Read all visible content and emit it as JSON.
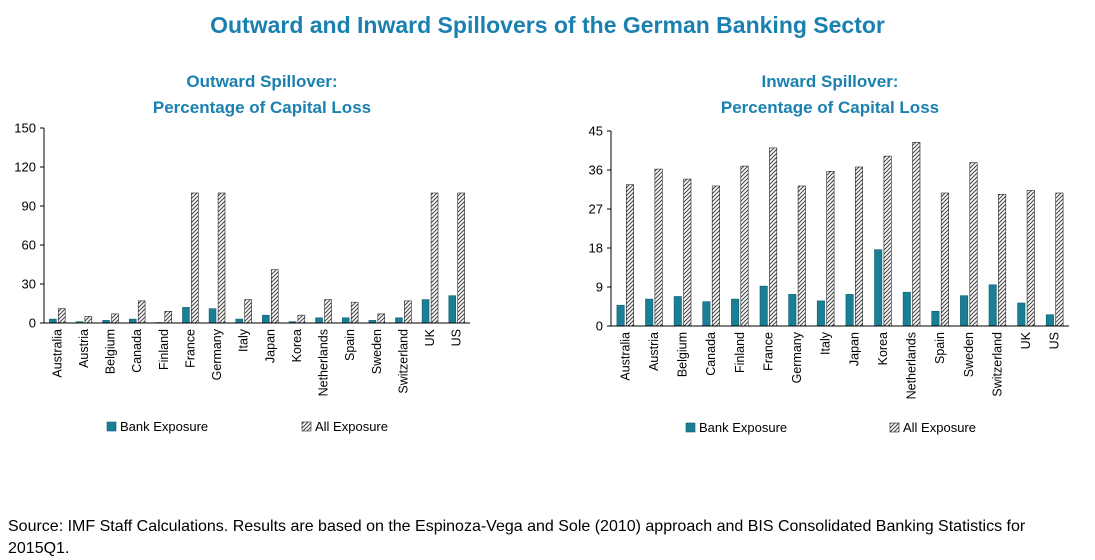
{
  "main_title": "Outward and Inward Spillovers of the German Banking Sector",
  "colors": {
    "title": "#1a80b0",
    "bank_bar": "#1a7f94",
    "hatch": "#404040",
    "axis": "#000000"
  },
  "source_note": "Source: IMF Staff Calculations. Results are based on the Espinoza-Vega and Sole (2010) approach and BIS Consolidated Banking Statistics for 2015Q1.",
  "chart_data": [
    {
      "type": "bar",
      "title_lines": [
        "Outward Spillover:",
        "Percentage of Capital Loss"
      ],
      "categories": [
        "Australia",
        "Austria",
        "Belgium",
        "Canada",
        "Finland",
        "France",
        "Germany",
        "Italy",
        "Japan",
        "Korea",
        "Netherlands",
        "Spain",
        "Sweden",
        "Switzerland",
        "UK",
        "US"
      ],
      "ylim": [
        0,
        150
      ],
      "yticks": [
        "0",
        "30",
        "60",
        "90",
        "120",
        "150"
      ],
      "ytick_values": [
        0,
        30,
        60,
        90,
        120,
        150
      ],
      "legend": [
        "Bank Exposure",
        "All Exposure"
      ],
      "series": [
        {
          "name": "Bank Exposure",
          "values": [
            3,
            1,
            2,
            3,
            0,
            12,
            11,
            3,
            6,
            1,
            4,
            4,
            2,
            4,
            18,
            21
          ]
        },
        {
          "name": "All Exposure",
          "values": [
            11,
            5,
            7,
            17,
            9,
            100,
            100,
            18,
            41,
            6,
            18,
            16,
            7,
            17,
            100,
            100
          ]
        }
      ]
    },
    {
      "type": "bar",
      "title_lines": [
        "Inward Spillover:",
        "Percentage of Capital Loss"
      ],
      "categories": [
        "Australia",
        "Austria",
        "Belgium",
        "Canada",
        "Finland",
        "France",
        "Germany",
        "Italy",
        "Japan",
        "Korea",
        "Netherlands",
        "Spain",
        "Sweden",
        "Switzerland",
        "UK",
        "US"
      ],
      "ylim": [
        0,
        45
      ],
      "yticks": [
        "0",
        "9",
        "18",
        "27",
        "36",
        "45"
      ],
      "ytick_values": [
        0,
        9,
        18,
        27,
        36,
        45
      ],
      "legend": [
        "Bank Exposure",
        "All Exposure"
      ],
      "series": [
        {
          "name": "Bank Exposure",
          "values": [
            4.8,
            6.2,
            6.8,
            5.6,
            6.2,
            9.2,
            7.3,
            5.8,
            7.3,
            17.6,
            7.8,
            3.4,
            7.0,
            9.5,
            5.3,
            2.6
          ]
        },
        {
          "name": "All Exposure",
          "values": [
            32.6,
            36.2,
            33.9,
            32.3,
            36.9,
            41.1,
            32.3,
            35.7,
            36.7,
            39.2,
            42.4,
            30.7,
            37.7,
            30.4,
            31.3,
            30.7
          ]
        }
      ]
    }
  ]
}
